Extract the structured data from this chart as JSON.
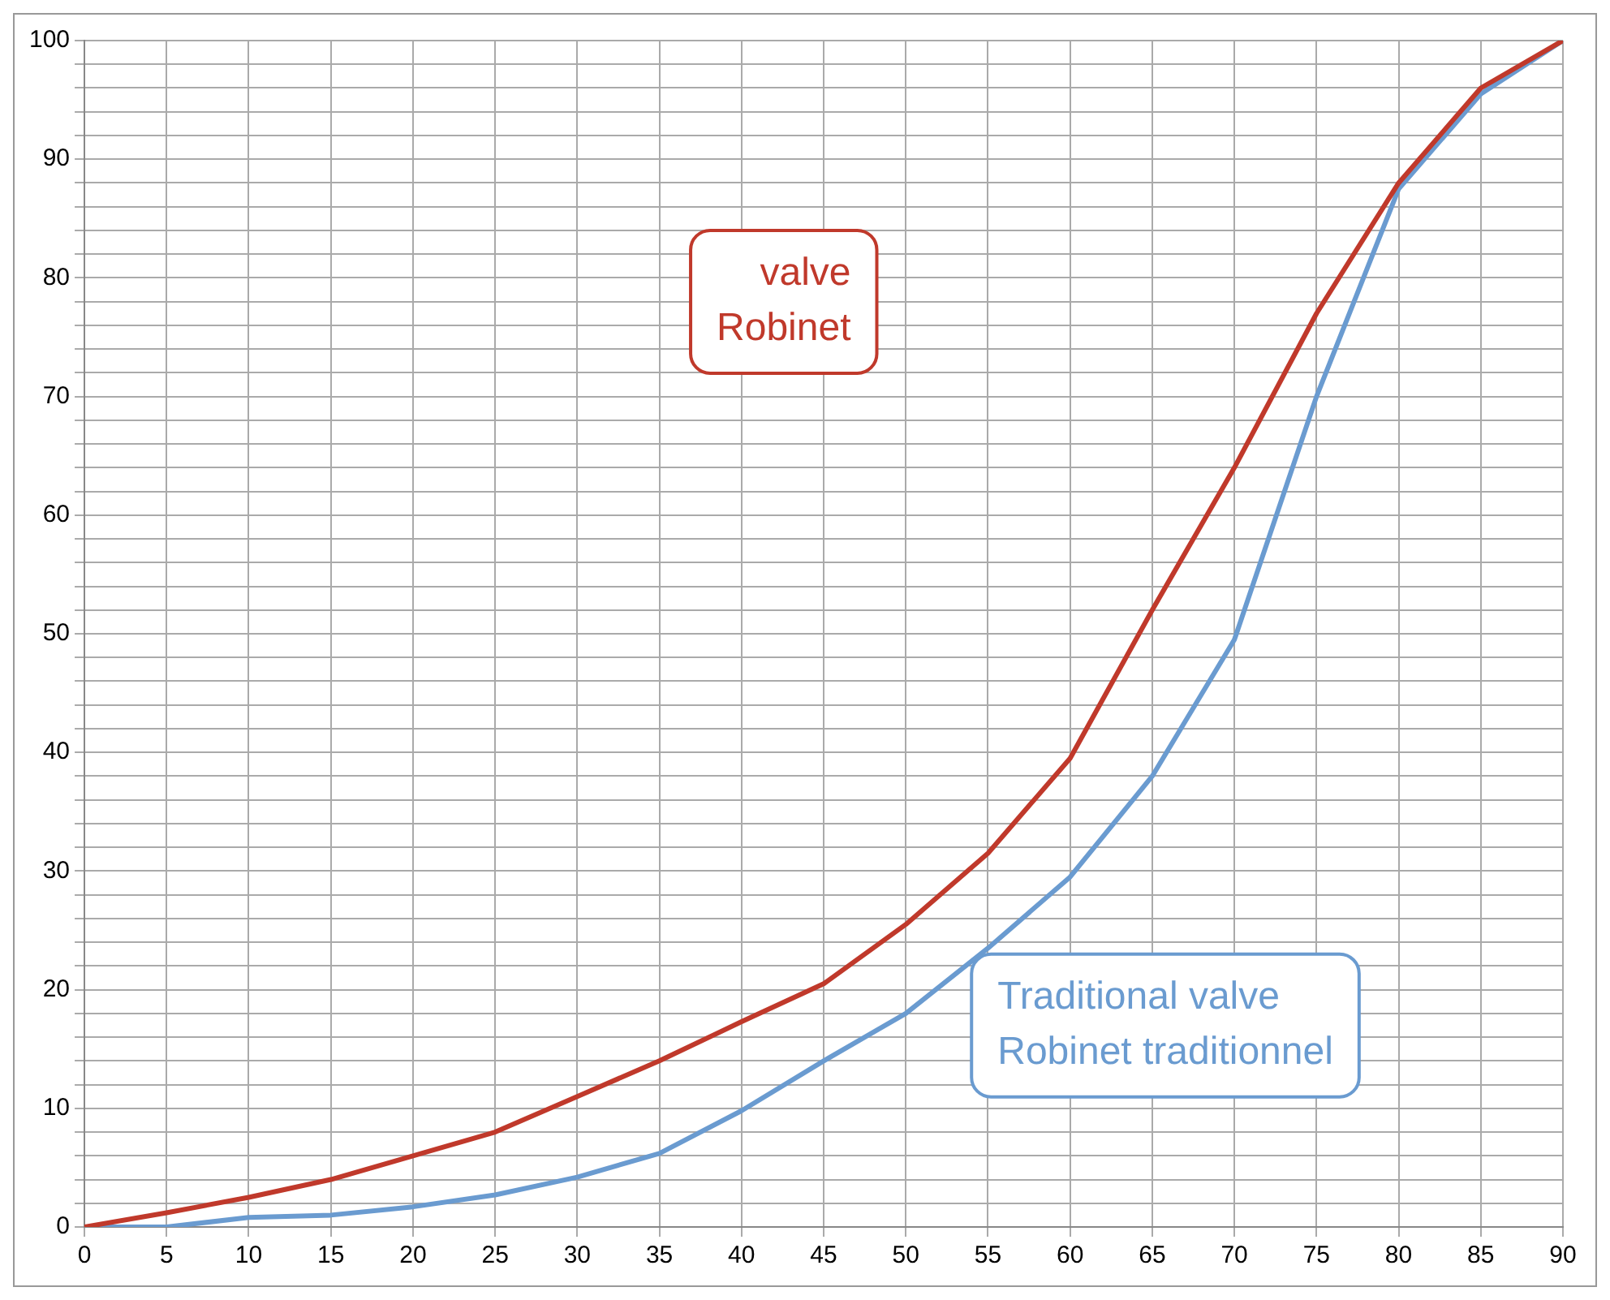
{
  "chart_data": {
    "type": "line",
    "x": [
      0,
      5,
      10,
      15,
      20,
      25,
      30,
      35,
      40,
      45,
      50,
      55,
      60,
      65,
      70,
      75,
      80,
      85,
      90
    ],
    "series": [
      {
        "name": "valve\nRobinet",
        "color": "#c0392b",
        "values": [
          0,
          1.2,
          2.5,
          4,
          6,
          8,
          11,
          14,
          17.3,
          20.5,
          25.5,
          31.5,
          39.5,
          52,
          64,
          77,
          88,
          96,
          100
        ]
      },
      {
        "name": "Traditional valve\nRobinet traditionnel",
        "color": "#6a9bd0",
        "values": [
          0,
          0,
          0.8,
          1,
          1.7,
          2.7,
          4.2,
          6.2,
          9.8,
          14,
          18,
          23.5,
          29.5,
          38,
          49.5,
          70,
          87.5,
          95.5,
          100
        ]
      }
    ],
    "xlim": [
      0,
      90
    ],
    "xticks": [
      0,
      5,
      10,
      15,
      20,
      25,
      30,
      35,
      40,
      45,
      50,
      55,
      60,
      65,
      70,
      75,
      80,
      85,
      90
    ],
    "ylim": [
      0,
      100
    ],
    "yticks": [
      0,
      {
        "value": 2,
        "label": null
      },
      {
        "value": 4,
        "label": null
      },
      {
        "value": 6,
        "label": null
      },
      {
        "value": 8,
        "label": null
      },
      10,
      {
        "value": 12,
        "label": null
      },
      {
        "value": 14,
        "label": null
      },
      {
        "value": 16,
        "label": null
      },
      {
        "value": 18,
        "label": null
      },
      20,
      {
        "value": 22,
        "label": null
      },
      {
        "value": 24,
        "label": null
      },
      {
        "value": 26,
        "label": null
      },
      {
        "value": 28,
        "label": null
      },
      30,
      {
        "value": 32,
        "label": null
      },
      {
        "value": 34,
        "label": null
      },
      {
        "value": 36,
        "label": null
      },
      {
        "value": 38,
        "label": null
      },
      40,
      {
        "value": 42,
        "label": null
      },
      {
        "value": 44,
        "label": null
      },
      {
        "value": 46,
        "label": null
      },
      {
        "value": 48,
        "label": null
      },
      50,
      {
        "value": 52,
        "label": null
      },
      {
        "value": 54,
        "label": null
      },
      {
        "value": 56,
        "label": null
      },
      {
        "value": 58,
        "label": null
      },
      60,
      {
        "value": 62,
        "label": null
      },
      {
        "value": 64,
        "label": null
      },
      {
        "value": 66,
        "label": null
      },
      {
        "value": 68,
        "label": null
      },
      70,
      {
        "value": 72,
        "label": null
      },
      {
        "value": 74,
        "label": null
      },
      {
        "value": 76,
        "label": null
      },
      {
        "value": 78,
        "label": null
      },
      80,
      {
        "value": 82,
        "label": null
      },
      {
        "value": 84,
        "label": null
      },
      {
        "value": 86,
        "label": null
      },
      {
        "value": 88,
        "label": null
      },
      90,
      {
        "value": 92,
        "label": null
      },
      {
        "value": 94,
        "label": null
      },
      {
        "value": 96,
        "label": null
      },
      {
        "value": 98,
        "label": null
      },
      100
    ],
    "grid": true,
    "legend": false,
    "marker": "none",
    "line_style": "solid"
  }
}
